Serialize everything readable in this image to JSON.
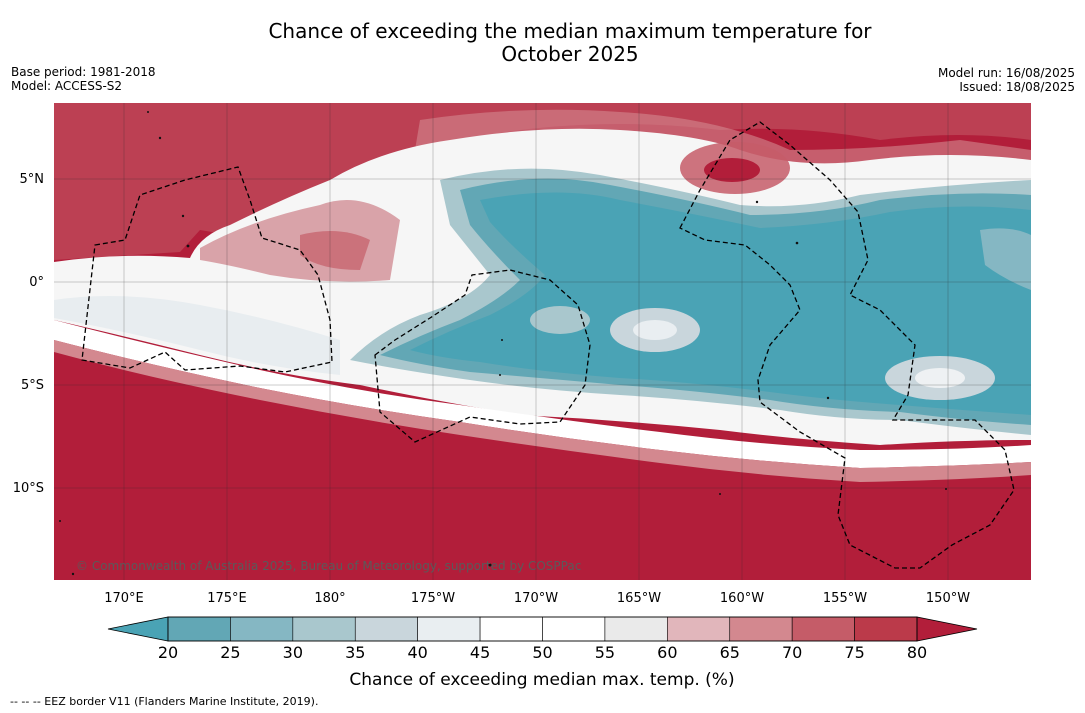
{
  "title_line1": "Chance of exceeding the median maximum temperature for",
  "title_line2": "October 2025",
  "meta_left": {
    "base_period": "Base period: 1981-2018",
    "model": "Model: ACCESS-S2"
  },
  "meta_right": {
    "model_run": "Model run: 16/08/2025",
    "issued": "Issued: 18/08/2025"
  },
  "lat_labels": [
    "5°N",
    "0°",
    "5°S",
    "10°S"
  ],
  "lon_labels": [
    "170°E",
    "175°E",
    "180°",
    "175°W",
    "170°W",
    "165°W",
    "160°W",
    "155°W",
    "150°W"
  ],
  "copyright": "© Commonwealth of Australia 2025, Bureau of Meteorology, supported by COSPPac",
  "colorbar": {
    "title": "Chance of exceeding median max. temp. (%)",
    "ticks": [
      "20",
      "25",
      "30",
      "35",
      "40",
      "45",
      "50",
      "55",
      "60",
      "65",
      "70",
      "75",
      "80"
    ],
    "colors": [
      "#62a7b5",
      "#85b7c3",
      "#a9c7cd",
      "#c9d6dc",
      "#e9eef1",
      "#ffffff",
      "#ffffff",
      "#eaeaea",
      "#e1b6bb",
      "#d3888f",
      "#c55c68",
      "#bb3a4a"
    ],
    "under_color": "#4aa3b5",
    "over_color": "#b21e3a"
  },
  "eez_note": "-- -- -- EEZ border V11 (Flanders Marine Institute, 2019)."
}
